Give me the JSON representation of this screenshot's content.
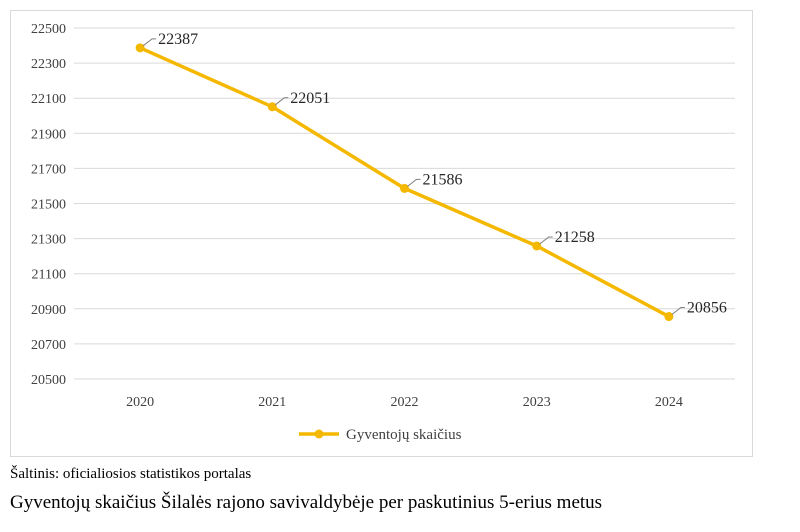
{
  "chart_data": {
    "type": "line",
    "categories": [
      "2020",
      "2021",
      "2022",
      "2023",
      "2024"
    ],
    "series": [
      {
        "name": "Gyventojų skaičius",
        "values": [
          22387,
          22051,
          21586,
          21258,
          20856
        ],
        "color": "#f5b800"
      }
    ],
    "data_labels": [
      "22387",
      "22051",
      "21586",
      "21258",
      "20856"
    ],
    "yticks": [
      "20500",
      "20700",
      "20900",
      "21100",
      "21300",
      "21500",
      "21700",
      "21900",
      "22100",
      "22300",
      "22500"
    ],
    "ylim": [
      20500,
      22500
    ],
    "grid": true,
    "legend_position": "bottom",
    "gridline_color": "#d9d9d9"
  },
  "source_note": "Šaltinis: oficialiosios statistikos portalas",
  "caption": "Gyventojų skaičius Šilalės rajono savivaldybėje per paskutinius 5-erius metus"
}
